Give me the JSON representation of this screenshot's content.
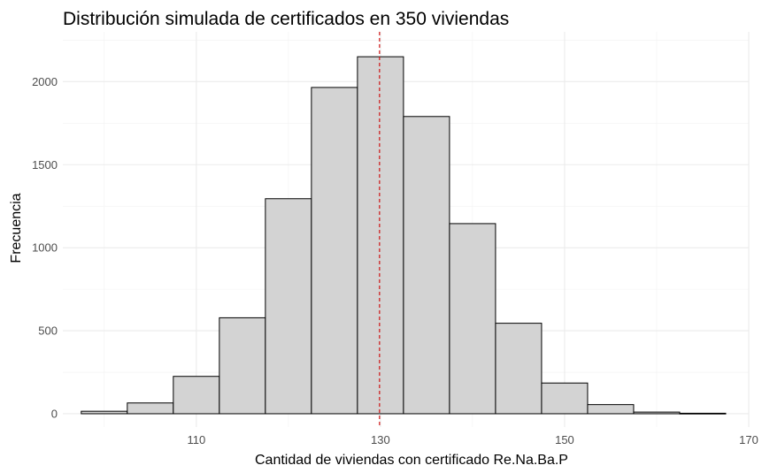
{
  "chart_data": {
    "type": "bar",
    "subtype": "histogram",
    "title": "Distribución simulada de certificados en 350 viviendas",
    "xlabel": "Cantidad de viviendas con certificado Re.Na.Ba.P",
    "ylabel": "Frecuencia",
    "xlim": [
      95.5,
      170
    ],
    "ylim": [
      -80,
      2300
    ],
    "x_ticks": [
      110,
      130,
      150,
      170
    ],
    "y_ticks": [
      0,
      500,
      1000,
      1500,
      2000
    ],
    "bin_width": 5,
    "bins": [
      {
        "start": 97.5,
        "end": 102.5,
        "count": 15
      },
      {
        "start": 102.5,
        "end": 107.5,
        "count": 65
      },
      {
        "start": 107.5,
        "end": 112.5,
        "count": 225
      },
      {
        "start": 112.5,
        "end": 117.5,
        "count": 578
      },
      {
        "start": 117.5,
        "end": 122.5,
        "count": 1295
      },
      {
        "start": 122.5,
        "end": 127.5,
        "count": 1965
      },
      {
        "start": 127.5,
        "end": 132.5,
        "count": 2150
      },
      {
        "start": 132.5,
        "end": 137.5,
        "count": 1790
      },
      {
        "start": 137.5,
        "end": 142.5,
        "count": 1145
      },
      {
        "start": 142.5,
        "end": 147.5,
        "count": 545
      },
      {
        "start": 147.5,
        "end": 152.5,
        "count": 185
      },
      {
        "start": 152.5,
        "end": 157.5,
        "count": 55
      },
      {
        "start": 157.5,
        "end": 162.5,
        "count": 10
      },
      {
        "start": 162.5,
        "end": 167.5,
        "count": 3
      }
    ],
    "mean_line": {
      "x": 129.9,
      "color": "#cc0000",
      "style": "dashed"
    },
    "bar_fill": "#d3d3d3",
    "bar_stroke": "#000000",
    "grid": true,
    "legend": "none"
  }
}
